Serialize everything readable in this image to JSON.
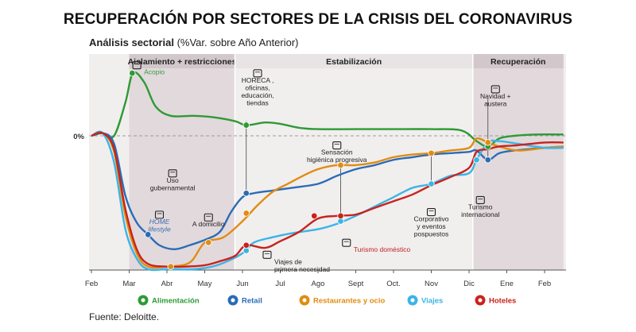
{
  "title": "RECUPERACIÓN POR SECTORES DE LA CRISIS DEL CORONAVIRUS",
  "subtitle_bold": "Análisis sectorial",
  "subtitle_rest": " (%Var. sobre Año Anterior)",
  "source": "Fuente: Deloitte.",
  "chart_data": {
    "type": "line",
    "x": [
      "Feb",
      "Mar",
      "Abr",
      "May",
      "Jun",
      "Jul",
      "Ago",
      "Sept",
      "Oct.",
      "Nov",
      "Dic",
      "Ene",
      "Feb"
    ],
    "zero_label": "0%",
    "phases": [
      {
        "label": "Aislamiento + restricciones",
        "from": 1,
        "to": 3.8,
        "shaded": true
      },
      {
        "label": "Estabilización",
        "from": 3.8,
        "to": 10.1,
        "shaded": false
      },
      {
        "label": "Recuperación",
        "from": 10.1,
        "to": 12.5,
        "shaded": true
      }
    ],
    "ylim": [
      -100,
      60
    ],
    "series": [
      {
        "name": "Alimentación",
        "color": "#2e9a35",
        "points": [
          [
            0,
            0
          ],
          [
            0.3,
            2
          ],
          [
            0.6,
            0
          ],
          [
            0.9,
            25
          ],
          [
            1.1,
            47
          ],
          [
            1.4,
            40
          ],
          [
            1.7,
            22
          ],
          [
            2.1,
            15
          ],
          [
            2.7,
            15
          ],
          [
            3.2,
            14
          ],
          [
            3.8,
            11
          ],
          [
            4.1,
            8
          ],
          [
            4.6,
            10
          ],
          [
            5,
            9
          ],
          [
            5.5,
            6
          ],
          [
            6,
            5
          ],
          [
            7,
            5
          ],
          [
            8,
            5
          ],
          [
            9,
            5
          ],
          [
            9.8,
            4
          ],
          [
            10.2,
            -4
          ],
          [
            10.5,
            -8
          ],
          [
            10.8,
            -2
          ],
          [
            11.2,
            0
          ],
          [
            11.8,
            1
          ],
          [
            12.5,
            1
          ]
        ]
      },
      {
        "name": "Retail",
        "color": "#2a6cb5",
        "points": [
          [
            0,
            0
          ],
          [
            0.3,
            2
          ],
          [
            0.6,
            -6
          ],
          [
            0.9,
            -45
          ],
          [
            1.2,
            -65
          ],
          [
            1.5,
            -74
          ],
          [
            1.8,
            -82
          ],
          [
            2.2,
            -85
          ],
          [
            2.6,
            -82
          ],
          [
            3,
            -78
          ],
          [
            3.4,
            -72
          ],
          [
            3.7,
            -57
          ],
          [
            4,
            -46
          ],
          [
            4.3,
            -43
          ],
          [
            4.8,
            -41
          ],
          [
            5.3,
            -39
          ],
          [
            6,
            -36
          ],
          [
            6.5,
            -30
          ],
          [
            7,
            -25
          ],
          [
            7.5,
            -22
          ],
          [
            8,
            -18
          ],
          [
            8.5,
            -16
          ],
          [
            9,
            -14
          ],
          [
            9.5,
            -13
          ],
          [
            10,
            -12
          ],
          [
            10.2,
            -11
          ],
          [
            10.5,
            -18
          ],
          [
            10.8,
            -13
          ],
          [
            11.2,
            -11
          ],
          [
            12,
            -9
          ],
          [
            12.5,
            -8
          ]
        ]
      },
      {
        "name": "Restaurantes y ocio",
        "color": "#e08c12",
        "points": [
          [
            0,
            0
          ],
          [
            0.3,
            2
          ],
          [
            0.6,
            -12
          ],
          [
            0.9,
            -60
          ],
          [
            1.2,
            -88
          ],
          [
            1.5,
            -98
          ],
          [
            2,
            -98
          ],
          [
            2.6,
            -95
          ],
          [
            3,
            -80
          ],
          [
            3.5,
            -76
          ],
          [
            4,
            -64
          ],
          [
            4.4,
            -52
          ],
          [
            4.8,
            -42
          ],
          [
            5.2,
            -36
          ],
          [
            5.6,
            -30
          ],
          [
            6,
            -25
          ],
          [
            6.5,
            -22
          ],
          [
            7,
            -22
          ],
          [
            7.5,
            -20
          ],
          [
            8,
            -16
          ],
          [
            8.5,
            -14
          ],
          [
            9,
            -13
          ],
          [
            9.5,
            -11
          ],
          [
            10,
            -9
          ],
          [
            10.2,
            -2
          ],
          [
            10.5,
            -5
          ],
          [
            10.8,
            -8
          ],
          [
            11.3,
            -11
          ],
          [
            12,
            -9
          ],
          [
            12.5,
            -8
          ]
        ]
      },
      {
        "name": "Viajes",
        "color": "#3ab5e6",
        "points": [
          [
            0,
            0
          ],
          [
            0.3,
            2
          ],
          [
            0.6,
            -20
          ],
          [
            0.9,
            -70
          ],
          [
            1.2,
            -92
          ],
          [
            1.5,
            -100
          ],
          [
            2,
            -100
          ],
          [
            2.7,
            -100
          ],
          [
            3.2,
            -98
          ],
          [
            3.6,
            -94
          ],
          [
            4,
            -88
          ],
          [
            4.3,
            -80
          ],
          [
            4.8,
            -76
          ],
          [
            5.3,
            -73
          ],
          [
            6,
            -70
          ],
          [
            6.5,
            -66
          ],
          [
            7,
            -60
          ],
          [
            7.5,
            -53
          ],
          [
            8,
            -46
          ],
          [
            8.5,
            -39
          ],
          [
            9,
            -36
          ],
          [
            9.5,
            -30
          ],
          [
            10,
            -28
          ],
          [
            10.2,
            -18
          ],
          [
            10.5,
            -5
          ],
          [
            10.8,
            -4
          ],
          [
            11.3,
            -6
          ],
          [
            12,
            -9
          ],
          [
            12.5,
            -9
          ]
        ]
      },
      {
        "name": "Hoteles",
        "color": "#c8231d",
        "points": [
          [
            0,
            0
          ],
          [
            0.3,
            2
          ],
          [
            0.6,
            -10
          ],
          [
            0.9,
            -55
          ],
          [
            1.2,
            -85
          ],
          [
            1.5,
            -96
          ],
          [
            2,
            -98
          ],
          [
            2.5,
            -98
          ],
          [
            3,
            -97
          ],
          [
            3.4,
            -94
          ],
          [
            3.8,
            -90
          ],
          [
            4.1,
            -82
          ],
          [
            4.6,
            -84
          ],
          [
            5,
            -79
          ],
          [
            5.5,
            -72
          ],
          [
            6,
            -62
          ],
          [
            6.5,
            -60
          ],
          [
            7,
            -59
          ],
          [
            7.5,
            -54
          ],
          [
            8,
            -49
          ],
          [
            8.5,
            -44
          ],
          [
            9,
            -37
          ],
          [
            9.5,
            -31
          ],
          [
            10,
            -24
          ],
          [
            10.2,
            -12
          ],
          [
            10.5,
            -10
          ],
          [
            10.8,
            -8
          ],
          [
            11.3,
            -7
          ],
          [
            12,
            -5
          ],
          [
            12.5,
            -5
          ]
        ]
      }
    ],
    "markers": [
      {
        "series": 0,
        "x": 1.08,
        "y": 47
      },
      {
        "series": 0,
        "x": 4.1,
        "y": 8
      },
      {
        "series": 0,
        "x": 10.5,
        "y": -8
      },
      {
        "series": 1,
        "x": 1.5,
        "y": -74
      },
      {
        "series": 1,
        "x": 4.1,
        "y": -43
      },
      {
        "series": 1,
        "x": 10.5,
        "y": -18
      },
      {
        "series": 2,
        "x": 2.1,
        "y": -98
      },
      {
        "series": 2,
        "x": 3.1,
        "y": -80
      },
      {
        "series": 2,
        "x": 4.1,
        "y": -58
      },
      {
        "series": 2,
        "x": 6.6,
        "y": -22
      },
      {
        "series": 2,
        "x": 9,
        "y": -13
      },
      {
        "series": 2,
        "x": 10.5,
        "y": -5
      },
      {
        "series": 3,
        "x": 4.1,
        "y": -86
      },
      {
        "series": 3,
        "x": 6.6,
        "y": -64
      },
      {
        "series": 3,
        "x": 9,
        "y": -36
      },
      {
        "series": 3,
        "x": 10.2,
        "y": -18
      },
      {
        "series": 4,
        "x": 4.1,
        "y": -82
      },
      {
        "series": 4,
        "x": 5.9,
        "y": -60
      },
      {
        "series": 4,
        "x": 6.6,
        "y": -60
      }
    ],
    "annotations": [
      {
        "text": [
          "Acopio"
        ],
        "x": 1.35,
        "y": 46,
        "style": "green",
        "icon": "basket-icon",
        "anchor": "start"
      },
      {
        "text": [
          "Uso",
          "gubernamental"
        ],
        "x": 2.15,
        "y": -35,
        "style": "dark",
        "icon": "building-icon",
        "anchor": "middle"
      },
      {
        "text": [
          "HOME",
          "lifestyle"
        ],
        "x": 1.8,
        "y": -66,
        "style": "blue",
        "icon": "mouse-icon",
        "anchor": "middle"
      },
      {
        "text": [
          "A domicilio"
        ],
        "x": 3.1,
        "y": -68,
        "style": "dark",
        "icon": "wifi-icon",
        "anchor": "middle"
      },
      {
        "text": [
          "HORECA ,",
          "oficinas,",
          "educación,",
          "tiendas"
        ],
        "x": 4.4,
        "y": 40,
        "style": "dark",
        "icon": "open-sign-icon",
        "anchor": "middle"
      },
      {
        "text": [
          "Viajes de",
          "primera necesidad"
        ],
        "x": 4.8,
        "y": -96,
        "style": "dark",
        "icon": "plane-icon",
        "anchor": "start"
      },
      {
        "text": [
          "Sensación",
          "higiénica progresiva"
        ],
        "x": 6.5,
        "y": -14,
        "style": "dark",
        "icon": "virus-icon",
        "anchor": "middle"
      },
      {
        "text": [
          "Turismo doméstico"
        ],
        "x": 6.9,
        "y": -87,
        "style": "red",
        "icon": "spain-map-icon",
        "anchor": "start"
      },
      {
        "text": [
          "Corporativo",
          "y eventos",
          "pospuestos"
        ],
        "x": 9,
        "y": -64,
        "style": "dark",
        "icon": "briefcase-icon",
        "anchor": "middle"
      },
      {
        "text": [
          "Turismo",
          "internacional"
        ],
        "x": 10.3,
        "y": -55,
        "style": "dark",
        "icon": "globe-icon",
        "anchor": "middle"
      },
      {
        "text": [
          "Navidad +",
          "austera"
        ],
        "x": 10.7,
        "y": 28,
        "style": "dark",
        "icon": "money-icon",
        "anchor": "middle"
      }
    ],
    "legend": [
      {
        "label": "Alimentación",
        "color": "#2e9a35",
        "icon": "cart-icon"
      },
      {
        "label": "Retail",
        "color": "#2a6cb5",
        "icon": "tag-icon"
      },
      {
        "label": "Restaurantes y ocio",
        "color": "#e08c12",
        "icon": "cutlery-icon"
      },
      {
        "label": "Viajes",
        "color": "#3ab5e6",
        "icon": "plane-icon"
      },
      {
        "label": "Hoteles",
        "color": "#c8231d",
        "icon": "bed-icon"
      }
    ],
    "legend_position": "bottom"
  }
}
